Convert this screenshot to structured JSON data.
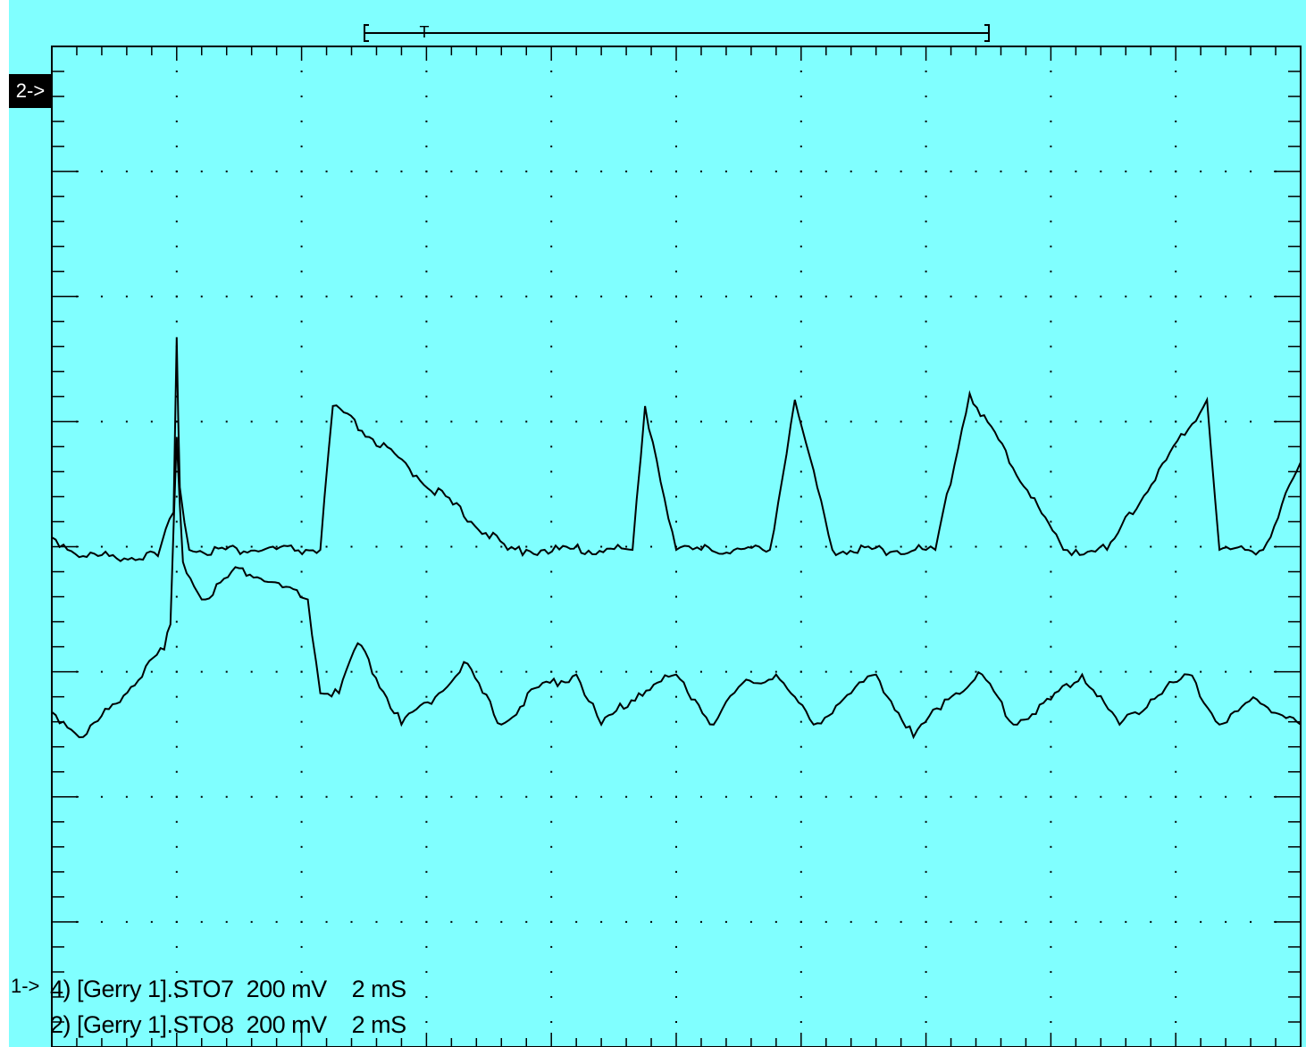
{
  "colors": {
    "screen_background": "#80ffff",
    "trace": "#000000",
    "grid": "#000000",
    "marker_background": "#000000",
    "marker_text": "#ffffff"
  },
  "markers": {
    "channel2": "2->",
    "channel1": "1->"
  },
  "trigger_marker": "T",
  "legend": [
    "4) [Gerry 1].STO7  200 mV    2 mS",
    "2) [Gerry 1].STO8  200 mV    2 mS"
  ],
  "chart_data": {
    "type": "line",
    "x_unit": "mS",
    "x_range_ms": [
      0,
      20
    ],
    "x_divisions": 10,
    "y_divisions": 8,
    "grid": true,
    "series": [
      {
        "channel": "STO7",
        "volts_per_div": 0.2,
        "x_ms": [
          0,
          0.5,
          1.7,
          1.95,
          2.0,
          2.05,
          2.2,
          4.3,
          4.5,
          7.3,
          7.6,
          9.3,
          9.5,
          10.0,
          10.4,
          11.5,
          11.9,
          12.5,
          14.0,
          14.15,
          14.7,
          16.2,
          16.4,
          16.9,
          18.5,
          18.7,
          19.4,
          20
        ],
        "y_mV": [
          -20,
          -50,
          -50,
          20,
          300,
          60,
          -40,
          -40,
          190,
          -40,
          -40,
          -40,
          190,
          -40,
          -40,
          -40,
          200,
          -40,
          -40,
          -40,
          210,
          -40,
          -40,
          -40,
          200,
          -40,
          -40,
          100
        ]
      },
      {
        "channel": "STO8",
        "volts_per_div": 0.2,
        "x_ms": [
          0,
          0.5,
          1.8,
          1.9,
          2.0,
          2.1,
          2.4,
          3.0,
          4.1,
          4.3,
          4.6,
          4.9,
          5.6,
          6.2,
          6.6,
          7.2,
          7.8,
          8.4,
          8.8,
          9.4,
          10.0,
          10.6,
          11.0,
          11.6,
          12.2,
          12.8,
          13.2,
          13.8,
          14.3,
          14.9,
          15.4,
          16.0,
          16.5,
          17.1,
          17.6,
          18.2,
          18.7,
          19.3,
          20
        ],
        "y_mV": [
          420,
          380,
          520,
          560,
          860,
          660,
          600,
          650,
          600,
          450,
          450,
          530,
          400,
          450,
          500,
          400,
          460,
          480,
          400,
          450,
          480,
          400,
          460,
          480,
          400,
          450,
          480,
          380,
          440,
          480,
          400,
          440,
          480,
          400,
          440,
          480,
          400,
          440,
          400
        ]
      }
    ]
  }
}
